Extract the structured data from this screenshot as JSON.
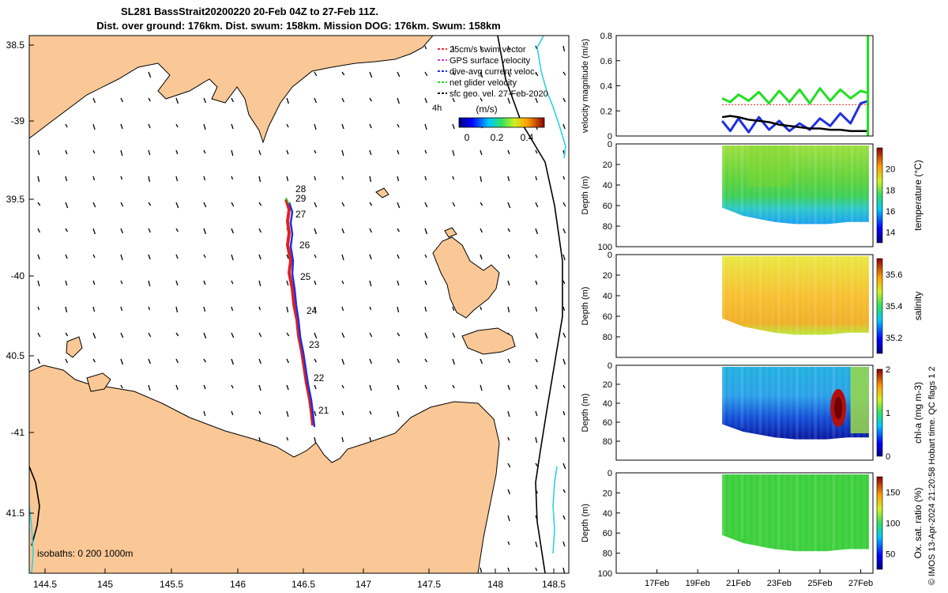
{
  "title": {
    "line1": "SL281 BassStrait20200220 20-Feb 04Z to 27-Feb 11Z.",
    "line2": "Dist. over ground: 176km. Dist. swum: 158km. Mission DOG: 176km. Swum: 158km"
  },
  "map": {
    "legend": [
      {
        "label": "25cm/s swim vector",
        "color": "#e03030"
      },
      {
        "label": "GPS surface velocity",
        "color": "#d040d0"
      },
      {
        "label": "dive-avg current veloc.",
        "color": "#1f2fe0"
      },
      {
        "label": "net glider velocity",
        "color": "#20e020"
      },
      {
        "label": "sfc geo. vel. 27-Feb-2020",
        "color": "#000000"
      }
    ],
    "colorbar_label": "(m/s)",
    "colorbar_ticks": [
      "0",
      "0.2",
      "0.4"
    ],
    "vector_scale_label": "4h",
    "isobaths_label": "isobaths: 0   200  1000m",
    "lon_ticks": [
      "144.5",
      "145",
      "145.5",
      "146",
      "146.5",
      "147",
      "147.5",
      "148",
      "148.5"
    ],
    "lat_ticks": [
      "38.5",
      "-39",
      "39.5",
      "-40",
      "40.5",
      "-41",
      "41.5"
    ],
    "day_labels": [
      "28",
      "29",
      "27",
      "26",
      "25",
      "24",
      "23",
      "22",
      "21"
    ],
    "colors": {
      "land": "#fac896",
      "ocean": "#ffffff",
      "isobath_1000": "#2ad4e0"
    }
  },
  "chart_data": [
    {
      "type": "line",
      "panel": "velocity",
      "ylabel": "velocity magnitude (m/s)",
      "ylim": [
        0,
        0.8
      ],
      "yticks": [
        "0",
        "0.2",
        "0.4",
        "0.6",
        "0.8"
      ],
      "x_dates": [
        20.2,
        20.6,
        21.0,
        21.5,
        22.0,
        22.5,
        23.0,
        23.5,
        24.0,
        24.5,
        25.0,
        25.5,
        26.0,
        26.5,
        27.0,
        27.4
      ],
      "series": [
        {
          "color": "#20e020",
          "values": [
            0.3,
            0.27,
            0.33,
            0.28,
            0.35,
            0.26,
            0.36,
            0.27,
            0.37,
            0.26,
            0.38,
            0.28,
            0.37,
            0.3,
            0.36,
            0.34
          ]
        },
        {
          "color": "#1f2fe0",
          "values": [
            0.12,
            0.04,
            0.14,
            0.03,
            0.15,
            0.05,
            0.12,
            0.04,
            0.1,
            0.05,
            0.14,
            0.08,
            0.18,
            0.1,
            0.26,
            0.28
          ]
        },
        {
          "color": "#000000",
          "values": [
            0.15,
            0.16,
            0.15,
            0.13,
            0.12,
            0.11,
            0.09,
            0.08,
            0.07,
            0.06,
            0.06,
            0.05,
            0.05,
            0.04,
            0.04,
            0.04
          ]
        }
      ]
    },
    {
      "type": "heatmap",
      "panel": "temperature",
      "ylabel": "Depth (m)",
      "colorbar_label": "temperature (°C)",
      "yticks": [
        "0",
        "20",
        "40",
        "60",
        "80",
        "100"
      ],
      "colorbar_ticks": [
        "14",
        "16",
        "18",
        "20"
      ],
      "clim": [
        13,
        22
      ]
    },
    {
      "type": "heatmap",
      "panel": "salinity",
      "ylabel": "Depth (m)",
      "colorbar_label": "salinity",
      "yticks": [
        "0",
        "20",
        "40",
        "60",
        "80"
      ],
      "colorbar_ticks": [
        "35.2",
        "35.4",
        "35.6"
      ],
      "clim": [
        35.1,
        35.7
      ]
    },
    {
      "type": "heatmap",
      "panel": "chl-a",
      "ylabel": "Depth (m)",
      "colorbar_label": "chl-a (mg m-3)",
      "yticks": [
        "0",
        "20",
        "40",
        "60",
        "80"
      ],
      "colorbar_ticks": [
        "0",
        "1",
        "2"
      ],
      "clim": [
        0,
        2
      ]
    },
    {
      "type": "heatmap",
      "panel": "oxygen",
      "ylabel": "Depth (m)",
      "colorbar_label": "Ox. sat. ratio (%)",
      "yticks": [
        "0",
        "20",
        "40",
        "60",
        "80",
        "100"
      ],
      "colorbar_ticks": [
        "50",
        "100",
        "150"
      ],
      "clim": [
        25,
        175
      ],
      "x_tick_labels": [
        "17Feb",
        "19Feb",
        "21Feb",
        "23Feb",
        "25Feb",
        "27Feb"
      ]
    }
  ],
  "footer_note": "© IMOS 13-Apr-2024 21:20:58 Hobart time. QC flags 1  2"
}
